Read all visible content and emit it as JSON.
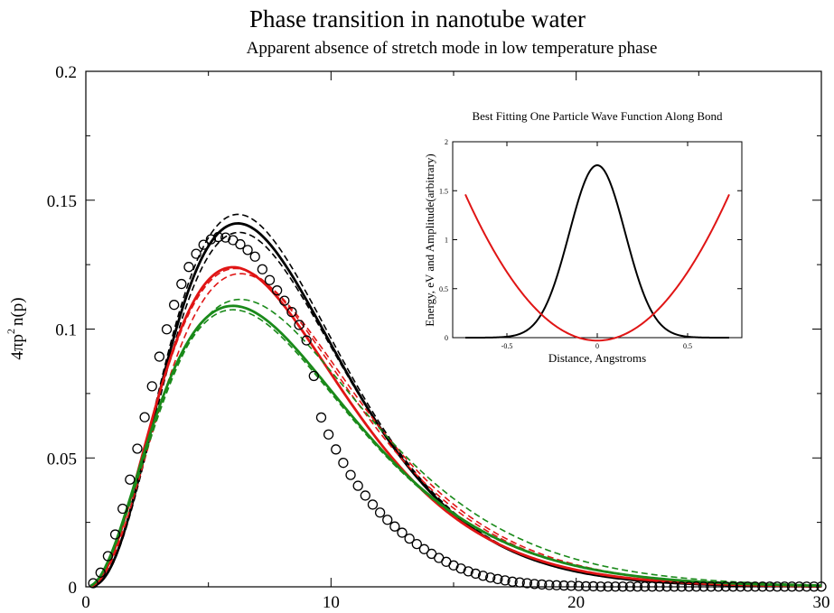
{
  "chart_data": {
    "type": "line",
    "title": "Phase transition in nanotube water",
    "subtitle": "Apparent absence of  stretch mode in low temperature phase",
    "xlabel": "",
    "ylabel": "4πp² n(p)",
    "ylabel_main": "4πp",
    "ylabel_sup": "2",
    "ylabel_tail": "n(p)",
    "xlim": [
      0,
      30
    ],
    "ylim": [
      0,
      0.2
    ],
    "x_ticks": [
      0,
      10,
      20,
      30
    ],
    "x_tick_labels": [
      "0",
      "10",
      "20",
      "30"
    ],
    "y_ticks": [
      0,
      0.05,
      0.1,
      0.15,
      0.2
    ],
    "y_tick_labels": [
      "0",
      "0.05",
      "0.1",
      "0.15",
      "0.2"
    ],
    "grid": false,
    "colors": {
      "black": "#000000",
      "red": "#e01515",
      "green": "#1a8a1a"
    },
    "circles": {
      "x": [
        0.3,
        0.6,
        0.9,
        1.2,
        1.5,
        1.8,
        2.1,
        2.4,
        2.7,
        3.0,
        3.3,
        3.6,
        3.9,
        4.2,
        4.5,
        4.8,
        5.1,
        5.4,
        5.7,
        6.0,
        6.3,
        6.6,
        6.9,
        7.2,
        7.5,
        7.8,
        8.1,
        8.4,
        8.7,
        9.0,
        9.3,
        9.6,
        9.9,
        10.2,
        10.5,
        10.8,
        11.1,
        11.4,
        11.7,
        12.0,
        12.3,
        12.6,
        12.9,
        13.2,
        13.5,
        13.8,
        14.1,
        14.4,
        14.7,
        15.0,
        15.3,
        15.6,
        15.9,
        16.2,
        16.5,
        16.8,
        17.1,
        17.4,
        17.7,
        18.0,
        18.3,
        18.6,
        18.9,
        19.2,
        19.5,
        19.8,
        20.1,
        20.4,
        20.7,
        21.0,
        21.3,
        21.6,
        21.9,
        22.2,
        22.5,
        22.8,
        23.1,
        23.4,
        23.7,
        24.0,
        24.3,
        24.6,
        24.9,
        25.2,
        25.5,
        25.8,
        26.1,
        26.4,
        26.7,
        27.0,
        27.3,
        27.6,
        27.9,
        28.2,
        28.5,
        28.8,
        29.1,
        29.4,
        29.7,
        30.0
      ],
      "y": [
        0.0014,
        0.0055,
        0.0119,
        0.0203,
        0.0303,
        0.0416,
        0.0536,
        0.0658,
        0.0778,
        0.0893,
        0.0999,
        0.1094,
        0.1175,
        0.1241,
        0.1292,
        0.1327,
        0.1348,
        0.1357,
        0.1355,
        0.1345,
        0.1329,
        0.1307,
        0.1281,
        0.1232,
        0.119,
        0.115,
        0.111,
        0.1066,
        0.1016,
        0.0956,
        0.0818,
        0.0657,
        0.0591,
        0.0533,
        0.0481,
        0.0434,
        0.0392,
        0.0354,
        0.0319,
        0.0288,
        0.026,
        0.0234,
        0.021,
        0.0187,
        0.0166,
        0.0146,
        0.0128,
        0.0112,
        0.0097,
        0.0083,
        0.0071,
        0.006,
        0.0051,
        0.0043,
        0.0036,
        0.003,
        0.0025,
        0.002,
        0.0017,
        0.0014,
        0.0011,
        0.0009,
        0.0007,
        0.0006,
        0.0005,
        0.0004,
        0.0003,
        0.0002,
        0.0002,
        0.0001,
        0.0001,
        0.0001,
        0.0001,
        0.0001,
        0.0001,
        0.0001,
        0.0001,
        0.0001,
        0.0001,
        0.0001,
        0.0001,
        0.0001,
        0.0001,
        0.0001,
        0.0001,
        0.0001,
        0.0001,
        0.0001,
        0.0001,
        0.0001,
        0.0001,
        0.0001,
        0.0001,
        0.0001,
        0.0001,
        0.0001,
        0.0001,
        0.0001,
        0.0001,
        0.0001
      ]
    },
    "series": [
      {
        "color": "black",
        "style": "solid",
        "peak": 0.141,
        "p0": 6.2,
        "k": 3.0
      },
      {
        "color": "black",
        "style": "dashed",
        "peak": 0.1445,
        "p0": 6.2,
        "k": 3.0
      },
      {
        "color": "black",
        "style": "dashed",
        "peak": 0.1375,
        "p0": 6.25,
        "k": 3.0
      },
      {
        "color": "red",
        "style": "solid",
        "peak": 0.124,
        "p0": 6.0,
        "k": 2.6
      },
      {
        "color": "red",
        "style": "dashed",
        "peak": 0.1235,
        "p0": 6.1,
        "k": 2.5
      },
      {
        "color": "red",
        "style": "dashed",
        "peak": 0.1215,
        "p0": 6.3,
        "k": 2.6
      },
      {
        "color": "green",
        "style": "solid",
        "peak": 0.109,
        "p0": 6.0,
        "k": 2.3
      },
      {
        "color": "green",
        "style": "dashed",
        "peak": 0.1115,
        "p0": 6.3,
        "k": 2.3
      },
      {
        "color": "green",
        "style": "dashed",
        "peak": 0.1075,
        "p0": 6.0,
        "k": 2.3
      }
    ],
    "inset": {
      "title": "Best Fitting One Particle Wave Function Along Bond",
      "xlabel": "Distance, Angstroms",
      "ylabel": "Energy, eV and Amplitude(arbitrary)",
      "xlim": [
        -0.8,
        0.8
      ],
      "ylim": [
        0,
        2
      ],
      "x_ticks": [
        -0.5,
        0,
        0.5
      ],
      "x_tick_labels": [
        "-0.5",
        "0",
        "0.5"
      ],
      "y_ticks": [
        0,
        0.5,
        1,
        1.5,
        2
      ],
      "y_tick_labels": [
        "0",
        "0.5",
        "1",
        "1.5",
        "2"
      ],
      "series": [
        {
          "color": "black",
          "kind": "gaussian",
          "peak": 1.76,
          "width": 0.155,
          "xrange": [
            -0.73,
            0.73
          ]
        },
        {
          "color": "red",
          "kind": "potential",
          "a": 2.8,
          "offset": -0.03,
          "xrange": [
            -0.73,
            0.73
          ]
        }
      ]
    }
  }
}
